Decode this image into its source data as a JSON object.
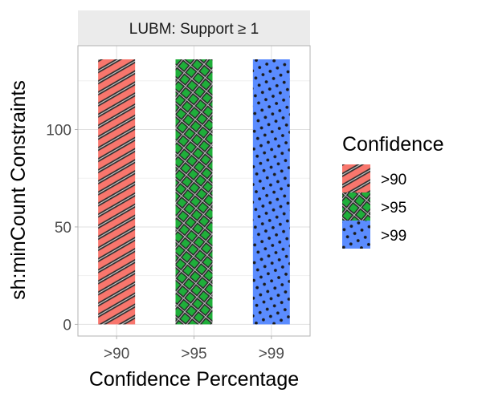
{
  "chart_data": {
    "type": "bar",
    "facet_label": "LUBM: Support  ≥ 1",
    "categories": [
      ">90",
      ">95",
      ">99"
    ],
    "values": [
      136,
      136,
      136
    ],
    "xlabel": "Confidence Percentage",
    "ylabel": "sh:minCount Constraints",
    "ylim": [
      -6,
      143
    ],
    "yticks": [
      0,
      50,
      100
    ],
    "grid": true,
    "legend": {
      "title": "Confidence",
      "position": "right",
      "entries": [
        ">90",
        ">95",
        ">99"
      ]
    },
    "colors": [
      "#f8766d",
      "#1fae3a",
      "#5b8cff"
    ],
    "patterns": [
      "stripe",
      "crosshatch",
      "circle"
    ]
  }
}
